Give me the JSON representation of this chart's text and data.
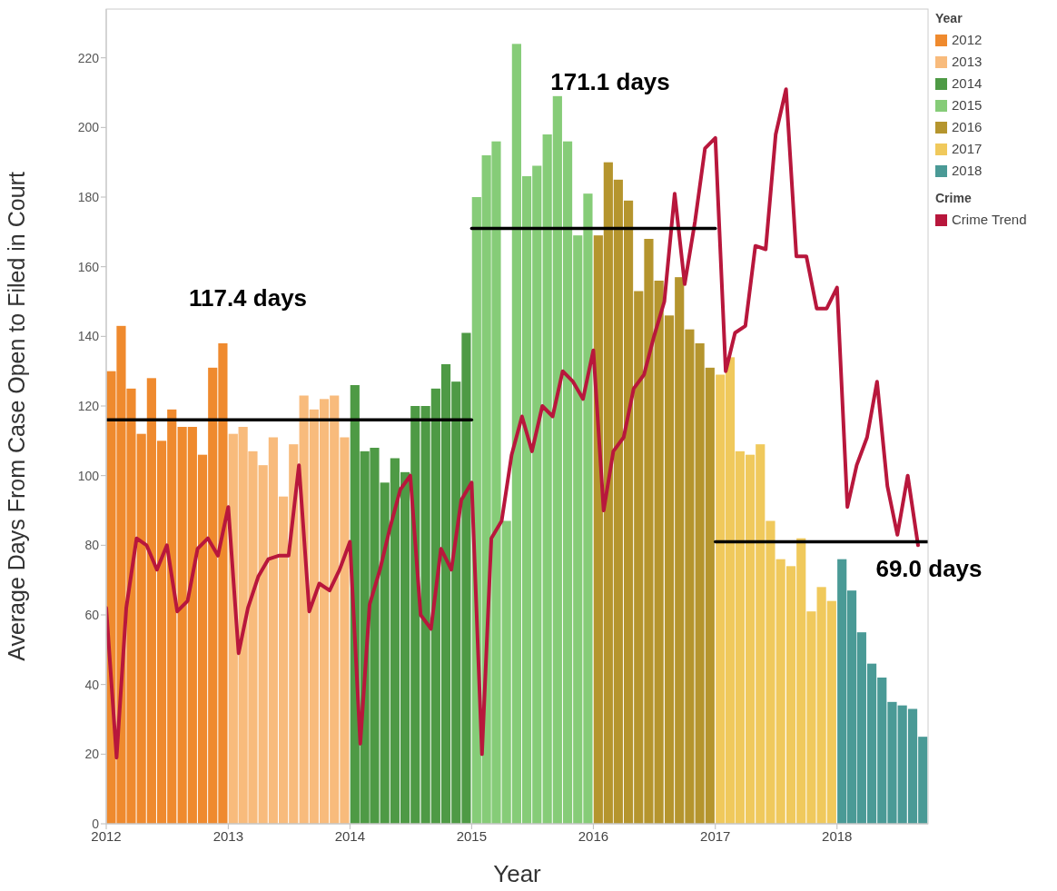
{
  "chart_data": {
    "type": "bar",
    "xlabel": "Year",
    "ylabel": "Average Days From Case Open to Filed in Court",
    "legend_title": "Year",
    "legend": "top right",
    "marker": "none",
    "line_style": "solid",
    "xlim": [
      "2012-01",
      "2018-10"
    ],
    "xticks": [
      "2012",
      "2013",
      "2014",
      "2015",
      "2016",
      "2017",
      "2018"
    ],
    "ylim": [
      0,
      234
    ],
    "yticks": [
      0,
      20,
      40,
      60,
      80,
      100,
      120,
      140,
      160,
      180,
      200,
      220
    ],
    "series": [
      {
        "name": "2012",
        "color": "#ef8a2e",
        "x": [
          "2012-01",
          "2012-02",
          "2012-03",
          "2012-04",
          "2012-05",
          "2012-06",
          "2012-07",
          "2012-08",
          "2012-09",
          "2012-10",
          "2012-11",
          "2012-12"
        ],
        "values": [
          130,
          143,
          125,
          112,
          128,
          110,
          119,
          114,
          114,
          106,
          131,
          138
        ]
      },
      {
        "name": "2013",
        "color": "#f8bb7c",
        "x": [
          "2013-01",
          "2013-02",
          "2013-03",
          "2013-04",
          "2013-05",
          "2013-06",
          "2013-07",
          "2013-08",
          "2013-09",
          "2013-10",
          "2013-11",
          "2013-12"
        ],
        "values": [
          112,
          114,
          107,
          103,
          111,
          94,
          109,
          123,
          119,
          122,
          123,
          111
        ]
      },
      {
        "name": "2014",
        "color": "#4e9a45",
        "x": [
          "2014-01",
          "2014-02",
          "2014-03",
          "2014-04",
          "2014-05",
          "2014-06",
          "2014-07",
          "2014-08",
          "2014-09",
          "2014-10",
          "2014-11",
          "2014-12"
        ],
        "values": [
          126,
          107,
          108,
          98,
          105,
          101,
          120,
          120,
          125,
          132,
          127,
          141
        ]
      },
      {
        "name": "2015",
        "color": "#86cc78",
        "x": [
          "2015-01",
          "2015-02",
          "2015-03",
          "2015-04",
          "2015-05",
          "2015-06",
          "2015-07",
          "2015-08",
          "2015-09",
          "2015-10",
          "2015-11",
          "2015-12"
        ],
        "values": [
          180,
          192,
          196,
          87,
          224,
          186,
          189,
          198,
          209,
          196,
          169,
          181
        ]
      },
      {
        "name": "2016",
        "color": "#b5952e",
        "x": [
          "2016-01",
          "2016-02",
          "2016-03",
          "2016-04",
          "2016-05",
          "2016-06",
          "2016-07",
          "2016-08",
          "2016-09",
          "2016-10",
          "2016-11",
          "2016-12"
        ],
        "values": [
          169,
          190,
          185,
          179,
          153,
          168,
          156,
          146,
          157,
          142,
          138,
          131
        ]
      },
      {
        "name": "2017",
        "color": "#f0c95c",
        "x": [
          "2017-01",
          "2017-02",
          "2017-03",
          "2017-04",
          "2017-05",
          "2017-06",
          "2017-07",
          "2017-08",
          "2017-09",
          "2017-10",
          "2017-11",
          "2017-12"
        ],
        "values": [
          129,
          134,
          107,
          106,
          109,
          87,
          76,
          74,
          82,
          61,
          68,
          64
        ]
      },
      {
        "name": "2018",
        "color": "#4a9a96",
        "x": [
          "2018-01",
          "2018-02",
          "2018-03",
          "2018-04",
          "2018-05",
          "2018-06",
          "2018-07",
          "2018-08",
          "2018-09"
        ],
        "values": [
          76,
          67,
          55,
          46,
          42,
          35,
          34,
          33,
          25
        ]
      },
      {
        "name": "Crime Trend",
        "type": "line",
        "color": "#b8173c",
        "x": [
          "2012-01",
          "2012-02",
          "2012-03",
          "2012-04",
          "2012-05",
          "2012-06",
          "2012-07",
          "2012-08",
          "2012-09",
          "2012-10",
          "2012-11",
          "2012-12",
          "2013-01",
          "2013-02",
          "2013-03",
          "2013-04",
          "2013-05",
          "2013-06",
          "2013-07",
          "2013-08",
          "2013-09",
          "2013-10",
          "2013-11",
          "2013-12",
          "2014-01",
          "2014-02",
          "2014-03",
          "2014-04",
          "2014-05",
          "2014-06",
          "2014-07",
          "2014-08",
          "2014-09",
          "2014-10",
          "2014-11",
          "2014-12",
          "2015-01",
          "2015-02",
          "2015-03",
          "2015-04",
          "2015-05",
          "2015-06",
          "2015-07",
          "2015-08",
          "2015-09",
          "2015-10",
          "2015-11",
          "2015-12",
          "2016-01",
          "2016-02",
          "2016-03",
          "2016-04",
          "2016-05",
          "2016-06",
          "2016-07",
          "2016-08",
          "2016-09",
          "2016-10",
          "2016-11",
          "2016-12",
          "2017-01",
          "2017-02",
          "2017-03",
          "2017-04",
          "2017-05",
          "2017-06",
          "2017-07",
          "2017-08",
          "2017-09",
          "2017-10",
          "2017-11",
          "2017-12",
          "2018-01",
          "2018-02",
          "2018-03",
          "2018-04",
          "2018-05",
          "2018-06",
          "2018-07",
          "2018-08",
          "2018-09"
        ],
        "values": [
          62,
          19,
          62,
          82,
          80,
          73,
          80,
          61,
          64,
          79,
          82,
          77,
          91,
          49,
          62,
          71,
          76,
          77,
          77,
          103,
          61,
          69,
          67,
          73,
          81,
          23,
          63,
          73,
          85,
          96,
          100,
          60,
          56,
          79,
          73,
          93,
          98,
          20,
          82,
          87,
          106,
          117,
          107,
          120,
          117,
          130,
          127,
          122,
          136,
          90,
          107,
          111,
          125,
          129,
          140,
          150,
          181,
          155,
          173,
          194,
          197,
          130,
          141,
          143,
          166,
          165,
          198,
          211,
          163,
          163,
          148,
          148,
          154,
          91,
          103,
          111,
          127,
          97,
          83,
          100,
          80
        ]
      },
      {
        "type": "line",
        "color": "#000000",
        "x": [
          "2012-01",
          "2015-01"
        ],
        "values": [
          116,
          116
        ]
      },
      {
        "type": "line",
        "color": "#000000",
        "x": [
          "2015-01",
          "2017-01"
        ],
        "values": [
          171,
          171
        ]
      },
      {
        "type": "line",
        "color": "#000000",
        "x": [
          "2017-01",
          "2018-10"
        ],
        "values": [
          81,
          81
        ]
      }
    ],
    "annotations": [
      "117.4 days",
      "171.1 days",
      "69.0 days",
      "Crime"
    ]
  }
}
